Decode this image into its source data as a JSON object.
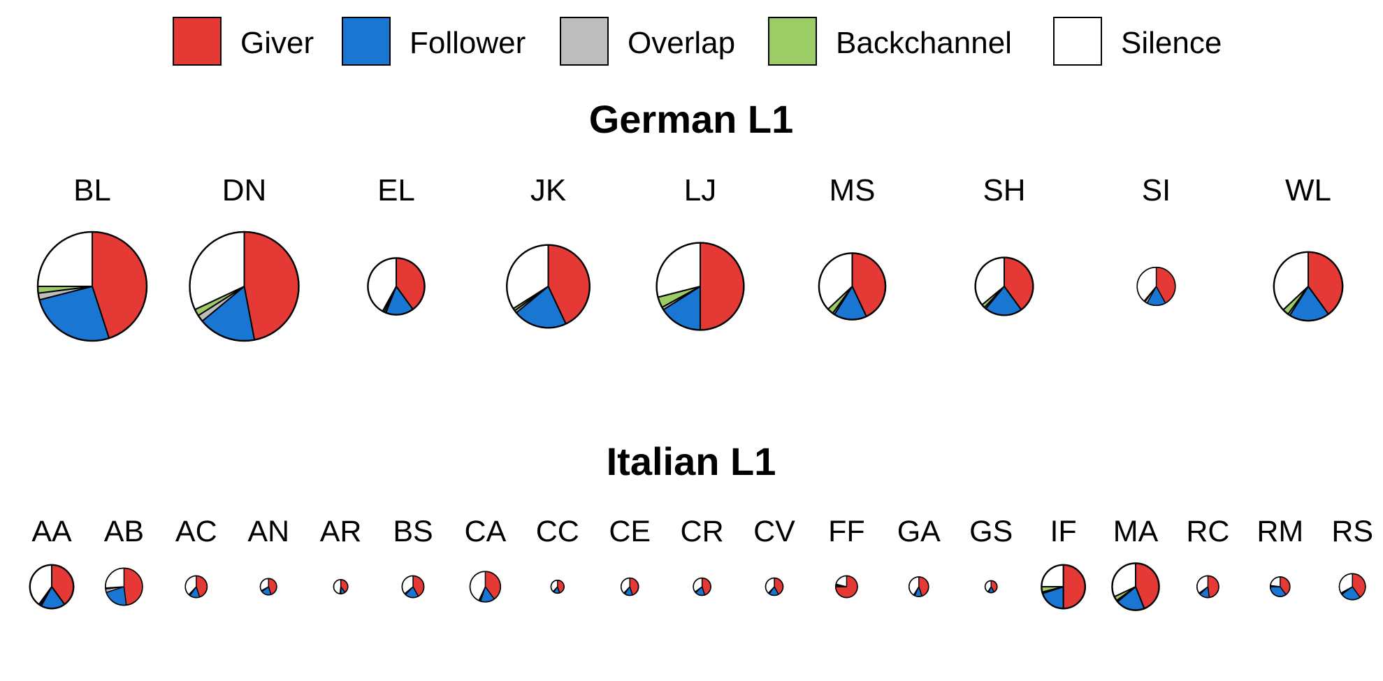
{
  "colors": {
    "Giver": "#e53935",
    "Follower": "#1976d2",
    "Overlap": "#bdbdbd",
    "Backchannel": "#9ccc65",
    "Silence": "#ffffff",
    "outline": "#000000"
  },
  "chart_data": {
    "type": "pie",
    "legend": {
      "position": "top",
      "entries": [
        "Giver",
        "Follower",
        "Overlap",
        "Backchannel",
        "Silence"
      ]
    },
    "slice_order": [
      "Giver",
      "Follower",
      "Overlap",
      "Backchannel",
      "Silence"
    ],
    "groups": [
      {
        "title": "German L1",
        "pies": [
          {
            "label": "BL",
            "size": 1.0,
            "values": [
              45,
              26,
              2,
              2,
              25
            ]
          },
          {
            "label": "DN",
            "size": 1.0,
            "values": [
              47,
              17,
              2,
              2,
              32
            ]
          },
          {
            "label": "EL",
            "size": 0.52,
            "values": [
              40,
              16,
              1,
              1,
              42
            ]
          },
          {
            "label": "JK",
            "size": 0.76,
            "values": [
              43,
              21,
              1,
              1,
              34
            ]
          },
          {
            "label": "LJ",
            "size": 0.8,
            "values": [
              50,
              16,
              1,
              4,
              29
            ]
          },
          {
            "label": "MS",
            "size": 0.61,
            "values": [
              43,
              16,
              1,
              3,
              37
            ]
          },
          {
            "label": "SH",
            "size": 0.53,
            "values": [
              40,
              21,
              1,
              2,
              36
            ]
          },
          {
            "label": "SI",
            "size": 0.35,
            "values": [
              42,
              16,
              2,
              1,
              39
            ]
          },
          {
            "label": "WL",
            "size": 0.63,
            "values": [
              40,
              19,
              1,
              3,
              37
            ]
          }
        ]
      },
      {
        "title": "Italian L1",
        "pies": [
          {
            "label": "AA",
            "size": 0.4,
            "values": [
              40,
              18,
              1,
              1,
              40
            ]
          },
          {
            "label": "AB",
            "size": 0.34,
            "values": [
              48,
              22,
              3,
              1,
              26
            ]
          },
          {
            "label": "AC",
            "size": 0.2,
            "values": [
              45,
              15,
              1,
              1,
              38
            ]
          },
          {
            "label": "AN",
            "size": 0.15,
            "values": [
              45,
              20,
              1,
              1,
              33
            ]
          },
          {
            "label": "AR",
            "size": 0.13,
            "values": [
              40,
              10,
              1,
              1,
              48
            ]
          },
          {
            "label": "BS",
            "size": 0.2,
            "values": [
              42,
              20,
              1,
              1,
              36
            ]
          },
          {
            "label": "CA",
            "size": 0.28,
            "values": [
              40,
              15,
              1,
              1,
              43
            ]
          },
          {
            "label": "CC",
            "size": 0.12,
            "values": [
              45,
              15,
              1,
              1,
              38
            ]
          },
          {
            "label": "CE",
            "size": 0.16,
            "values": [
              45,
              15,
              1,
              1,
              38
            ]
          },
          {
            "label": "CR",
            "size": 0.16,
            "values": [
              45,
              18,
              1,
              1,
              35
            ]
          },
          {
            "label": "CV",
            "size": 0.16,
            "values": [
              42,
              18,
              1,
              1,
              38
            ]
          },
          {
            "label": "FF",
            "size": 0.2,
            "values": [
              75,
              2,
              1,
              1,
              21
            ]
          },
          {
            "label": "GA",
            "size": 0.18,
            "values": [
              45,
              12,
              1,
              1,
              41
            ]
          },
          {
            "label": "GS",
            "size": 0.11,
            "values": [
              42,
              15,
              1,
              1,
              41
            ]
          },
          {
            "label": "IF",
            "size": 0.4,
            "values": [
              50,
              20,
              1,
              4,
              25
            ]
          },
          {
            "label": "MA",
            "size": 0.43,
            "values": [
              44,
              20,
              1,
              3,
              32
            ]
          },
          {
            "label": "RC",
            "size": 0.2,
            "values": [
              48,
              15,
              1,
              1,
              35
            ]
          },
          {
            "label": "RM",
            "size": 0.18,
            "values": [
              40,
              35,
              1,
              1,
              23
            ]
          },
          {
            "label": "RS",
            "size": 0.24,
            "values": [
              40,
              25,
              1,
              1,
              33
            ]
          }
        ]
      }
    ]
  }
}
